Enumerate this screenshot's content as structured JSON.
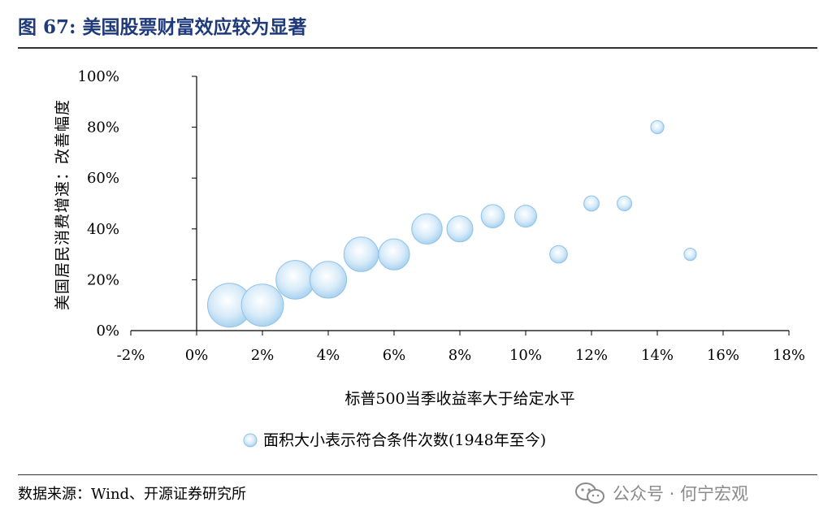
{
  "title": "图 67:  美国股票财富效应较为显著",
  "source": "数据来源：Wind、开源证券研究所",
  "watermark": "公众号 · 何宁宏观",
  "colors": {
    "title": "#1f3a7a",
    "bubble_fill": "#bfe0f6",
    "bubble_stroke": "#8fc2e8",
    "axis": "#000000"
  },
  "chart_data": {
    "type": "scatter",
    "xlabel": "标普500当季收益率大于给定水平",
    "ylabel": "美国居民消费增速：改善幅度",
    "xlim": [
      -0.02,
      0.18
    ],
    "ylim": [
      0,
      1.0
    ],
    "x_ticks": [
      "-2%",
      "0%",
      "2%",
      "4%",
      "6%",
      "8%",
      "10%",
      "12%",
      "14%",
      "16%",
      "18%"
    ],
    "y_ticks": [
      "0%",
      "20%",
      "40%",
      "60%",
      "80%",
      "100%"
    ],
    "legend": "面积大小表示符合条件次数(1948年至今)",
    "bubble_size_note": "relative area",
    "points": [
      {
        "x": 0.01,
        "y": 0.1,
        "size": 1.0
      },
      {
        "x": 0.02,
        "y": 0.1,
        "size": 0.92
      },
      {
        "x": 0.03,
        "y": 0.2,
        "size": 0.78
      },
      {
        "x": 0.04,
        "y": 0.2,
        "size": 0.7
      },
      {
        "x": 0.05,
        "y": 0.3,
        "size": 0.62
      },
      {
        "x": 0.06,
        "y": 0.3,
        "size": 0.5
      },
      {
        "x": 0.07,
        "y": 0.4,
        "size": 0.48
      },
      {
        "x": 0.08,
        "y": 0.4,
        "size": 0.35
      },
      {
        "x": 0.09,
        "y": 0.45,
        "size": 0.28
      },
      {
        "x": 0.1,
        "y": 0.45,
        "size": 0.25
      },
      {
        "x": 0.11,
        "y": 0.3,
        "size": 0.16
      },
      {
        "x": 0.12,
        "y": 0.5,
        "size": 0.12
      },
      {
        "x": 0.13,
        "y": 0.5,
        "size": 0.11
      },
      {
        "x": 0.14,
        "y": 0.8,
        "size": 0.09
      },
      {
        "x": 0.15,
        "y": 0.3,
        "size": 0.08
      }
    ]
  }
}
